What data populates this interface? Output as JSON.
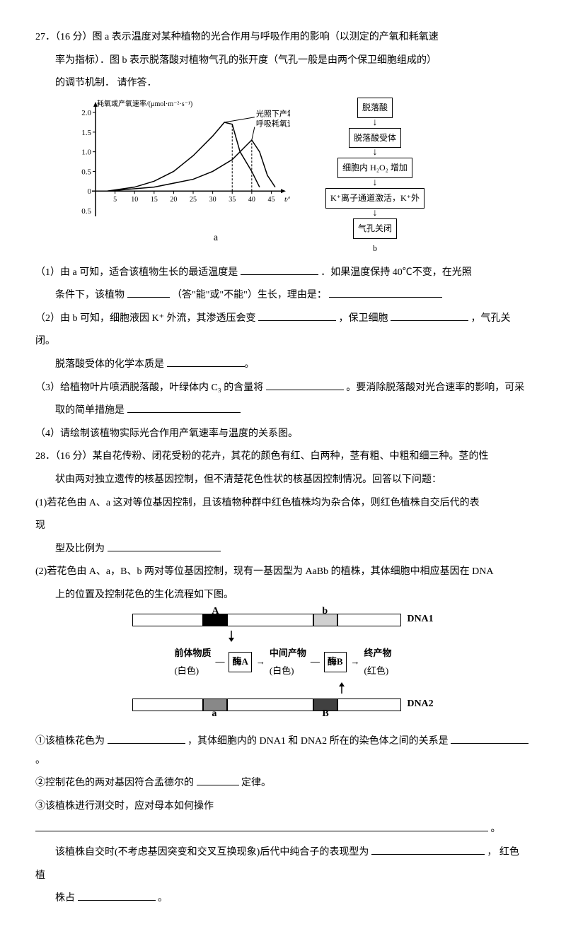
{
  "q27": {
    "num": "27．（16 分）图 a 表示温度对某种植物的光合作用与呼吸作用的影响（以测定的产氧和耗氧速",
    "l2": "率为指标）．图 b 表示脱落酸对植物气孔的张开度（气孔一般是由两个保卫细胞组成的）",
    "l3": "的调节机制． 请作答．",
    "chart_a": {
      "y_label": "耗氧或产氧速率/(μmol·m⁻²·s⁻¹)",
      "x_label": "t/°C",
      "x_ticks": [
        "5",
        "10",
        "15",
        "20",
        "25",
        "30",
        "35",
        "40",
        "45"
      ],
      "y_ticks": [
        "0",
        "0.5",
        "1.0",
        "1.5",
        "2.0"
      ],
      "legend1": "光照下产氧速率",
      "legend2": "呼吸耗氧速率",
      "label_a": "a",
      "series1": [
        [
          3,
          0
        ],
        [
          10,
          0.1
        ],
        [
          15,
          0.25
        ],
        [
          20,
          0.5
        ],
        [
          25,
          0.9
        ],
        [
          30,
          1.4
        ],
        [
          33,
          1.75
        ],
        [
          35,
          1.7
        ],
        [
          37,
          1.0
        ],
        [
          40,
          0.5
        ],
        [
          42,
          0.1
        ]
      ],
      "series2": [
        [
          3,
          0
        ],
        [
          15,
          0.1
        ],
        [
          25,
          0.3
        ],
        [
          30,
          0.5
        ],
        [
          35,
          0.8
        ],
        [
          38,
          1.1
        ],
        [
          40,
          1.3
        ],
        [
          42,
          1.0
        ],
        [
          44,
          0.4
        ],
        [
          46,
          0.1
        ]
      ],
      "colors": {
        "axis": "#000",
        "curve": "#000",
        "bg": "#fff"
      }
    },
    "flow": {
      "boxes": [
        "脱落酸",
        "脱落酸受体",
        "细胞内 H₂O₂ 增加",
        "K⁺离子通道激活，K⁺外",
        "气孔关闭"
      ],
      "label_b": "b"
    },
    "p1a": "（1）由 a 可知，适合该植物生长的最适温度是 ",
    "p1b": "．如果温度保持  40℃不变，在光照",
    "p1c": "条件下，该植物 ",
    "p1d": " （答\"能\"或\"不能\"）生长，理由是：",
    "p2a": "（2）由 b 可知，细胞液因 K⁺ 外流，其渗透压会变",
    "p2b": "，保卫细胞",
    "p2c": "，气孔关",
    "p2d": "闭。",
    "p2e": "脱落酸受体的化学本质是",
    "p3a": "（3）给植物叶片喷洒脱落酸，叶绿体内 C₃ 的含量将",
    "p3b": "。要消除脱落酸对光合速率的影响，可采",
    "p3c": "取的简单措施是",
    "p4": "（4）请绘制该植物实际光合作用产氧速率与温度的关系图。"
  },
  "q28": {
    "num": "28．（16 分）某自花传粉、闭花受粉的花卉，其花的颜色有红、白两种，茎有粗、中粗和细三种。茎的性",
    "l2": "状由两对独立遗传的核基因控制，但不清楚花色性状的核基因控制情况。回答以下问题：",
    "p1a": "(1)若花色由 A、a 这对等位基因控制，且该植物种群中红色植株均为杂合体，则红色植株自交后代的表",
    "p1b": "现",
    "p1c": "型及比例为",
    "p2a": "(2)若花色由 A、a，B、b 两对等位基因控制，现有一基因型为 AaBb 的植株，其体细胞中相应基因在 DNA",
    "p2b": "上的位置及控制花色的生化流程如下图。",
    "dna": {
      "top_labels": {
        "A": "A",
        "b": "b",
        "dna1": "DNA1"
      },
      "mid": {
        "pre": "前体物质",
        "white1": "(白色)",
        "enzA": "酶A",
        "inter": "中间产物",
        "white2": "(白色)",
        "enzB": "酶B",
        "final": "终产物",
        "red": "(红色)"
      },
      "bot_labels": {
        "a": "a",
        "B": "B",
        "dna2": "DNA2"
      },
      "colors": {
        "A": "#000000",
        "b": "#d0d0d0",
        "a": "#888888",
        "B": "#404040",
        "border": "#000",
        "bg": "#fff"
      }
    },
    "s1a": "①该植株花色为",
    "s1b": "，其体细胞内的 DNA1 和 DNA2 所在的染色体之间的关系是",
    "s2a": "②控制花色的两对基因符合孟德尔的",
    "s2b": "定律。",
    "s3a": "③该植株进行测交时，应对母本如何操作",
    "s3b": "。",
    "s4a": "该植株自交时(不考虑基因突变和交叉互换现象)后代中纯合子的表现型为",
    "s4b": "， 红色",
    "s4c": "植",
    "s4d": "株占",
    "s4e": "。"
  }
}
